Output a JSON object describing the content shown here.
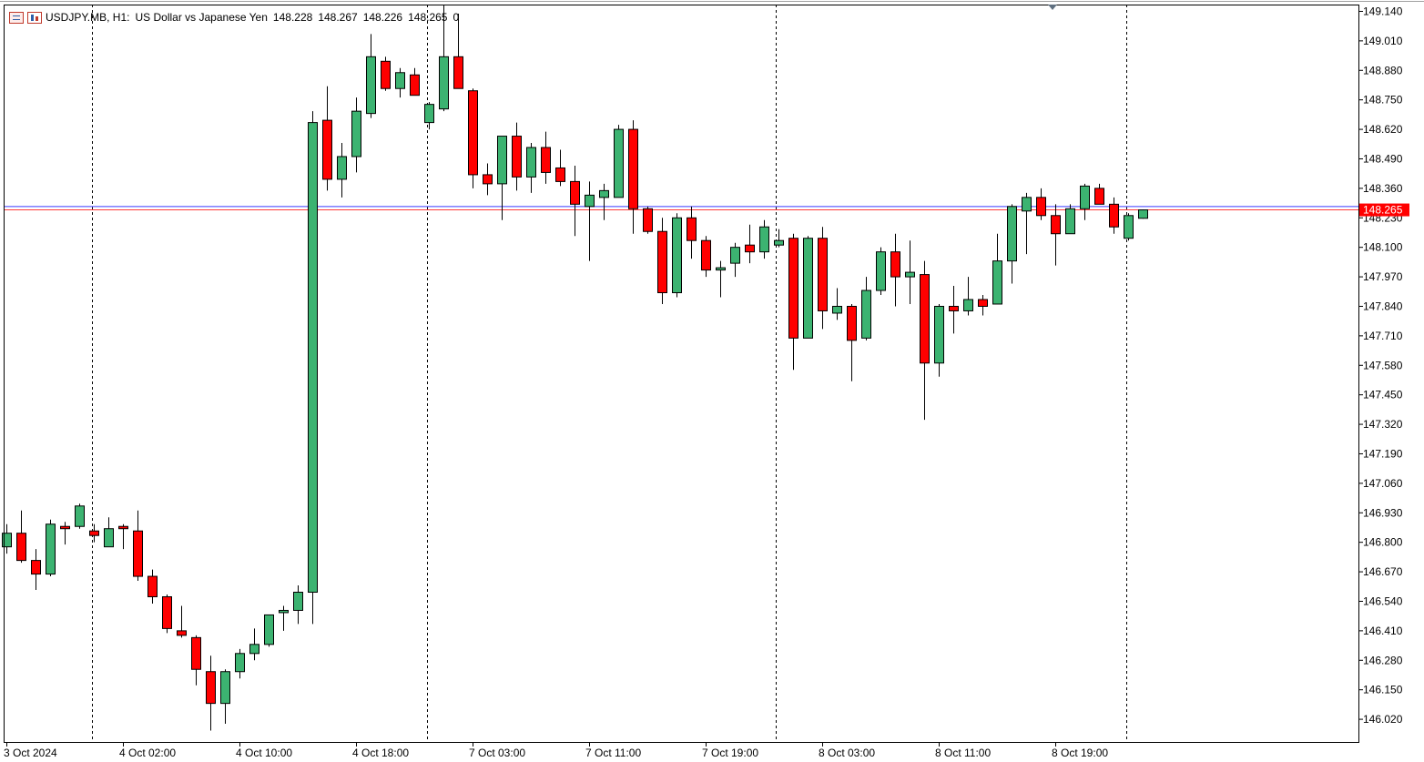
{
  "header": {
    "symbol": "USDJPY.MB, H1:",
    "description": "US Dollar vs Japanese Yen",
    "open": "148.228",
    "high": "148.267",
    "low": "148.226",
    "close": "148.265",
    "volume": "0"
  },
  "colors": {
    "bull": "#3cb371",
    "bear": "#ff0000",
    "bid_line": "#ff3b3b",
    "ask_line": "#3b3bff",
    "price_tag": "#ff0000"
  },
  "chart_data": {
    "type": "candlestick",
    "timeframe": "H1",
    "ylim": [
      145.92,
      149.17
    ],
    "y_ticks": [
      "149.140",
      "149.010",
      "148.880",
      "148.750",
      "148.620",
      "148.490",
      "148.360",
      "148.230",
      "148.100",
      "147.970",
      "147.840",
      "147.710",
      "147.580",
      "147.450",
      "147.320",
      "147.190",
      "147.060",
      "146.930",
      "146.800",
      "146.670",
      "146.540",
      "146.410",
      "146.280",
      "146.150",
      "146.020"
    ],
    "x_labels": [
      "3 Oct 2024",
      "4 Oct 02:00",
      "4 Oct 10:00",
      "4 Oct 18:00",
      "7 Oct 03:00",
      "7 Oct 11:00",
      "7 Oct 19:00",
      "8 Oct 03:00",
      "8 Oct 11:00",
      "8 Oct 19:00"
    ],
    "last_price": "148.265",
    "bid": 148.265,
    "ask": 148.28,
    "candles": [
      {
        "o": 146.78,
        "h": 146.88,
        "l": 146.75,
        "c": 146.84
      },
      {
        "o": 146.84,
        "h": 146.94,
        "l": 146.71,
        "c": 146.72
      },
      {
        "o": 146.72,
        "h": 146.77,
        "l": 146.59,
        "c": 146.66
      },
      {
        "o": 146.66,
        "h": 146.9,
        "l": 146.65,
        "c": 146.88
      },
      {
        "o": 146.87,
        "h": 146.89,
        "l": 146.79,
        "c": 146.86
      },
      {
        "o": 146.87,
        "h": 146.97,
        "l": 146.86,
        "c": 146.96
      },
      {
        "o": 146.85,
        "h": 146.88,
        "l": 146.8,
        "c": 146.83
      },
      {
        "o": 146.78,
        "h": 146.91,
        "l": 146.78,
        "c": 146.86
      },
      {
        "o": 146.87,
        "h": 146.88,
        "l": 146.77,
        "c": 146.86
      },
      {
        "o": 146.85,
        "h": 146.94,
        "l": 146.63,
        "c": 146.65
      },
      {
        "o": 146.65,
        "h": 146.68,
        "l": 146.53,
        "c": 146.56
      },
      {
        "o": 146.56,
        "h": 146.57,
        "l": 146.4,
        "c": 146.42
      },
      {
        "o": 146.41,
        "h": 146.52,
        "l": 146.38,
        "c": 146.39
      },
      {
        "o": 146.38,
        "h": 146.39,
        "l": 146.17,
        "c": 146.24
      },
      {
        "o": 146.23,
        "h": 146.3,
        "l": 145.97,
        "c": 146.09
      },
      {
        "o": 146.09,
        "h": 146.24,
        "l": 146.0,
        "c": 146.23
      },
      {
        "o": 146.23,
        "h": 146.33,
        "l": 146.2,
        "c": 146.31
      },
      {
        "o": 146.31,
        "h": 146.42,
        "l": 146.28,
        "c": 146.35
      },
      {
        "o": 146.35,
        "h": 146.48,
        "l": 146.34,
        "c": 146.48
      },
      {
        "o": 146.49,
        "h": 146.52,
        "l": 146.41,
        "c": 146.5
      },
      {
        "o": 146.5,
        "h": 146.61,
        "l": 146.44,
        "c": 146.58
      },
      {
        "o": 146.58,
        "h": 148.7,
        "l": 146.44,
        "c": 148.65
      },
      {
        "o": 148.66,
        "h": 148.81,
        "l": 148.35,
        "c": 148.4
      },
      {
        "o": 148.4,
        "h": 148.56,
        "l": 148.32,
        "c": 148.5
      },
      {
        "o": 148.5,
        "h": 148.76,
        "l": 148.43,
        "c": 148.7
      },
      {
        "o": 148.69,
        "h": 149.04,
        "l": 148.67,
        "c": 148.94
      },
      {
        "o": 148.92,
        "h": 148.94,
        "l": 148.79,
        "c": 148.8
      },
      {
        "o": 148.8,
        "h": 148.89,
        "l": 148.76,
        "c": 148.87
      },
      {
        "o": 148.86,
        "h": 148.89,
        "l": 148.77,
        "c": 148.77
      },
      {
        "o": 148.65,
        "h": 148.74,
        "l": 148.62,
        "c": 148.73
      },
      {
        "o": 148.71,
        "h": 149.17,
        "l": 148.7,
        "c": 148.94
      },
      {
        "o": 148.94,
        "h": 149.13,
        "l": 148.8,
        "c": 148.8
      },
      {
        "o": 148.79,
        "h": 148.8,
        "l": 148.36,
        "c": 148.42
      },
      {
        "o": 148.42,
        "h": 148.47,
        "l": 148.33,
        "c": 148.38
      },
      {
        "o": 148.38,
        "h": 148.59,
        "l": 148.22,
        "c": 148.59
      },
      {
        "o": 148.59,
        "h": 148.65,
        "l": 148.35,
        "c": 148.41
      },
      {
        "o": 148.41,
        "h": 148.56,
        "l": 148.34,
        "c": 148.54
      },
      {
        "o": 148.54,
        "h": 148.61,
        "l": 148.38,
        "c": 148.43
      },
      {
        "o": 148.45,
        "h": 148.53,
        "l": 148.37,
        "c": 148.39
      },
      {
        "o": 148.39,
        "h": 148.46,
        "l": 148.15,
        "c": 148.29
      },
      {
        "o": 148.28,
        "h": 148.39,
        "l": 148.04,
        "c": 148.33
      },
      {
        "o": 148.32,
        "h": 148.38,
        "l": 148.22,
        "c": 148.35
      },
      {
        "o": 148.32,
        "h": 148.64,
        "l": 148.33,
        "c": 148.62
      },
      {
        "o": 148.62,
        "h": 148.66,
        "l": 148.16,
        "c": 148.27
      },
      {
        "o": 148.27,
        "h": 148.28,
        "l": 148.16,
        "c": 148.17
      },
      {
        "o": 148.17,
        "h": 148.23,
        "l": 147.85,
        "c": 147.9
      },
      {
        "o": 147.9,
        "h": 148.25,
        "l": 147.88,
        "c": 148.23
      },
      {
        "o": 148.23,
        "h": 148.28,
        "l": 148.05,
        "c": 148.13
      },
      {
        "o": 148.13,
        "h": 148.15,
        "l": 147.97,
        "c": 148.0
      },
      {
        "o": 148.0,
        "h": 148.04,
        "l": 147.88,
        "c": 148.01
      },
      {
        "o": 148.03,
        "h": 148.12,
        "l": 147.97,
        "c": 148.1
      },
      {
        "o": 148.11,
        "h": 148.2,
        "l": 148.03,
        "c": 148.08
      },
      {
        "o": 148.08,
        "h": 148.22,
        "l": 148.05,
        "c": 148.19
      },
      {
        "o": 148.11,
        "h": 148.18,
        "l": 148.1,
        "c": 148.13
      },
      {
        "o": 148.14,
        "h": 148.16,
        "l": 147.56,
        "c": 147.7
      },
      {
        "o": 147.7,
        "h": 148.15,
        "l": 147.7,
        "c": 148.14
      },
      {
        "o": 148.14,
        "h": 148.19,
        "l": 147.74,
        "c": 147.82
      },
      {
        "o": 147.81,
        "h": 147.92,
        "l": 147.78,
        "c": 147.84
      },
      {
        "o": 147.84,
        "h": 147.85,
        "l": 147.51,
        "c": 147.69
      },
      {
        "o": 147.7,
        "h": 147.97,
        "l": 147.69,
        "c": 147.91
      },
      {
        "o": 147.91,
        "h": 148.1,
        "l": 147.89,
        "c": 148.08
      },
      {
        "o": 148.08,
        "h": 148.16,
        "l": 147.84,
        "c": 147.97
      },
      {
        "o": 147.97,
        "h": 148.13,
        "l": 147.85,
        "c": 147.99
      },
      {
        "o": 147.98,
        "h": 148.04,
        "l": 147.34,
        "c": 147.59
      },
      {
        "o": 147.59,
        "h": 147.85,
        "l": 147.53,
        "c": 147.84
      },
      {
        "o": 147.84,
        "h": 147.93,
        "l": 147.72,
        "c": 147.82
      },
      {
        "o": 147.82,
        "h": 147.97,
        "l": 147.8,
        "c": 147.87
      },
      {
        "o": 147.87,
        "h": 147.89,
        "l": 147.8,
        "c": 147.84
      },
      {
        "o": 147.85,
        "h": 148.16,
        "l": 147.85,
        "c": 148.04
      },
      {
        "o": 148.04,
        "h": 148.29,
        "l": 147.94,
        "c": 148.28
      },
      {
        "o": 148.26,
        "h": 148.34,
        "l": 148.07,
        "c": 148.32
      },
      {
        "o": 148.32,
        "h": 148.36,
        "l": 148.22,
        "c": 148.24
      },
      {
        "o": 148.24,
        "h": 148.29,
        "l": 148.02,
        "c": 148.16
      },
      {
        "o": 148.16,
        "h": 148.29,
        "l": 148.16,
        "c": 148.27
      },
      {
        "o": 148.27,
        "h": 148.38,
        "l": 148.22,
        "c": 148.37
      },
      {
        "o": 148.36,
        "h": 148.38,
        "l": 148.29,
        "c": 148.29
      },
      {
        "o": 148.29,
        "h": 148.32,
        "l": 148.16,
        "c": 148.19
      },
      {
        "o": 148.14,
        "h": 148.25,
        "l": 148.13,
        "c": 148.24
      },
      {
        "o": 148.228,
        "h": 148.267,
        "l": 148.226,
        "c": 148.265
      }
    ]
  }
}
